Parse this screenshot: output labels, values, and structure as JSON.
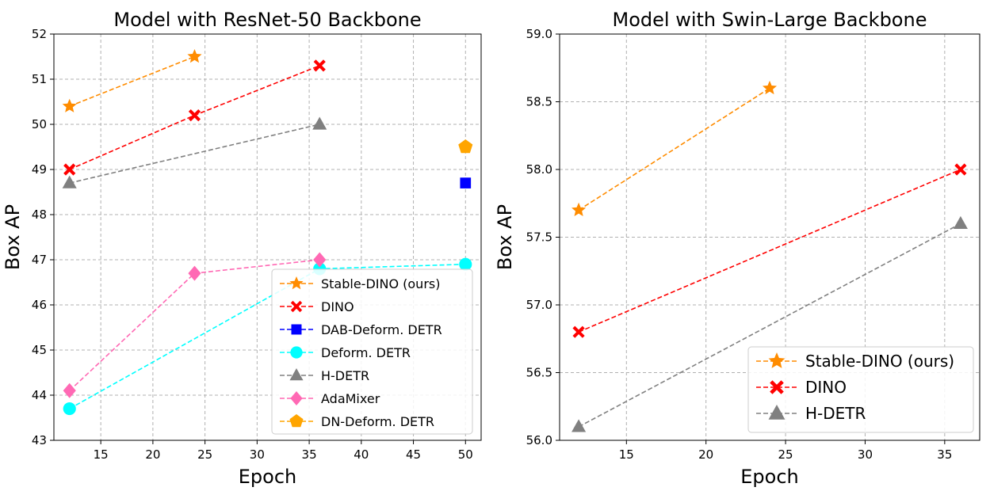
{
  "chart_data": [
    {
      "type": "line",
      "title": "Model with ResNet-50 Backbone",
      "xlabel": "Epoch",
      "ylabel": "Box AP",
      "xlim": [
        10.5,
        51.5
      ],
      "ylim": [
        43,
        52
      ],
      "xticks": [
        15,
        20,
        25,
        30,
        35,
        40,
        45,
        50
      ],
      "yticks": [
        43,
        44,
        45,
        46,
        47,
        48,
        49,
        50,
        51,
        52
      ],
      "grid": true,
      "legend_position": "bottom-right",
      "series": [
        {
          "name": "Stable-DINO (ours)",
          "color": "#ff8c00",
          "marker": "star",
          "x": [
            12,
            24
          ],
          "y": [
            50.4,
            51.5
          ]
        },
        {
          "name": "DINO",
          "color": "#ff0000",
          "marker": "x-filled",
          "x": [
            12,
            24,
            36
          ],
          "y": [
            49.0,
            50.2,
            51.3
          ]
        },
        {
          "name": "DAB-Deform. DETR",
          "color": "#0000ff",
          "marker": "square",
          "x": [
            50
          ],
          "y": [
            48.7
          ]
        },
        {
          "name": "Deform. DETR",
          "color": "#00ffff",
          "marker": "circle",
          "x": [
            12,
            36,
            50
          ],
          "y": [
            43.7,
            46.8,
            46.9
          ]
        },
        {
          "name": "H-DETR",
          "color": "#808080",
          "marker": "triangle",
          "x": [
            12,
            36
          ],
          "y": [
            48.7,
            50.0
          ]
        },
        {
          "name": "AdaMixer",
          "color": "#ff69b4",
          "marker": "diamond",
          "x": [
            12,
            24,
            36
          ],
          "y": [
            44.1,
            46.7,
            47.0
          ]
        },
        {
          "name": "DN-Deform. DETR",
          "color": "#ffa500",
          "marker": "pentagon",
          "x": [
            50
          ],
          "y": [
            49.5
          ]
        }
      ]
    },
    {
      "type": "line",
      "title": "Model with Swin-Large Backbone",
      "xlabel": "Epoch",
      "ylabel": "Box AP",
      "xlim": [
        10.8,
        37.2
      ],
      "ylim": [
        56.0,
        59.0
      ],
      "xticks": [
        15,
        20,
        25,
        30,
        35
      ],
      "yticks": [
        "56.0",
        "56.5",
        "57.0",
        "57.5",
        "58.0",
        "58.5",
        "59.0"
      ],
      "grid": true,
      "legend_position": "bottom-right",
      "series": [
        {
          "name": "Stable-DINO (ours)",
          "color": "#ff8c00",
          "marker": "star",
          "x": [
            12,
            24
          ],
          "y": [
            57.7,
            58.6
          ]
        },
        {
          "name": "DINO",
          "color": "#ff0000",
          "marker": "x-filled",
          "x": [
            12,
            36
          ],
          "y": [
            56.8,
            58.0
          ]
        },
        {
          "name": "H-DETR",
          "color": "#808080",
          "marker": "triangle",
          "x": [
            12,
            36
          ],
          "y": [
            56.1,
            57.6
          ]
        }
      ]
    }
  ]
}
